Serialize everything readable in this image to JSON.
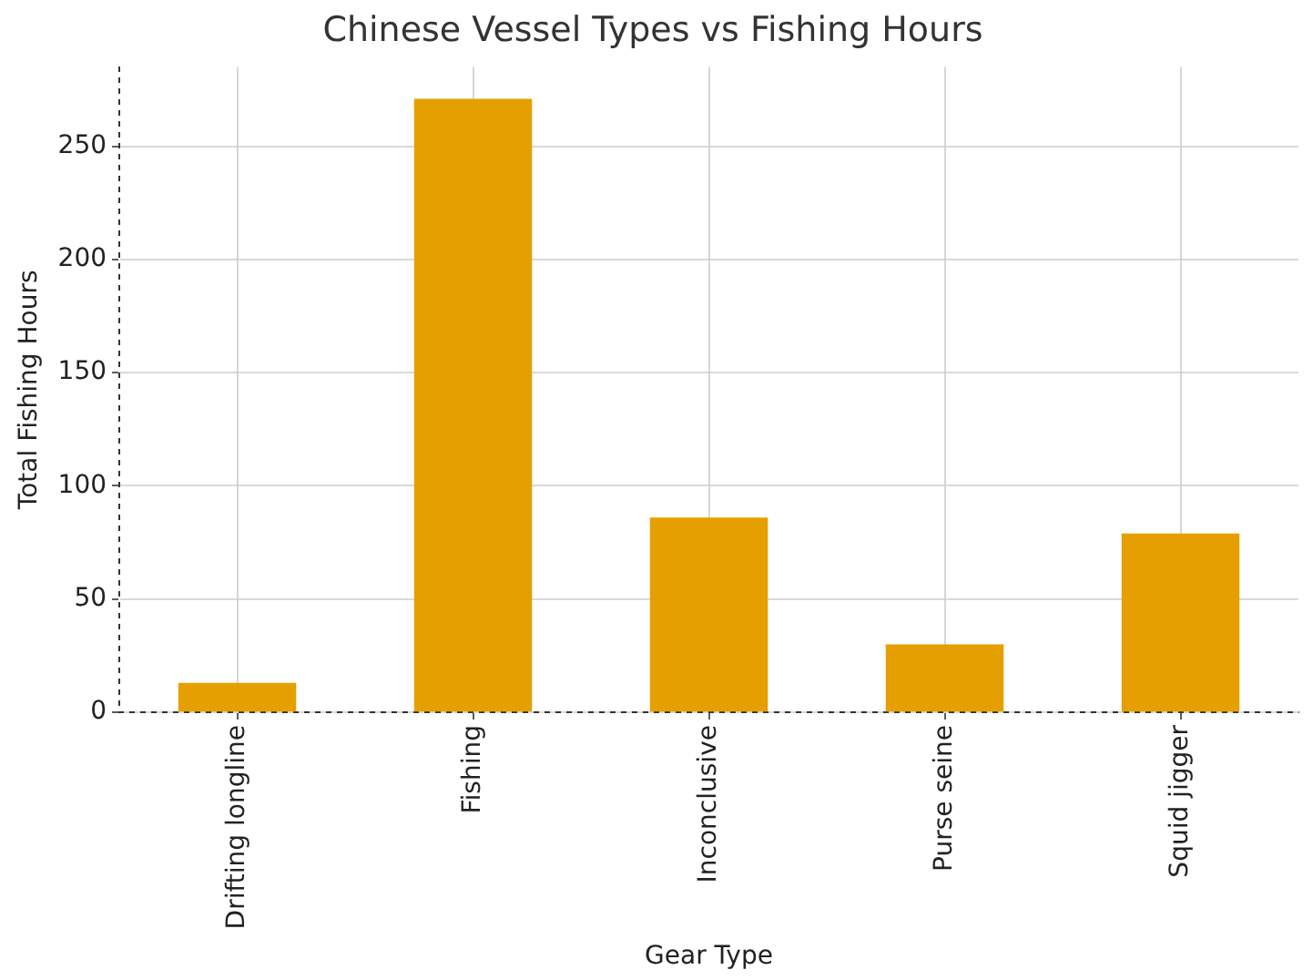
{
  "chart_data": {
    "type": "bar",
    "title": "Chinese Vessel Types vs Fishing Hours",
    "xlabel": "Gear Type",
    "ylabel": "Total Fishing Hours",
    "categories": [
      "Drifting longline",
      "Fishing",
      "Inconclusive",
      "Purse seine",
      "Squid jigger"
    ],
    "values": [
      13,
      271,
      86,
      30,
      79
    ],
    "color": "#e69f00",
    "ylim": [
      0,
      285
    ],
    "yticks": [
      0,
      50,
      100,
      150,
      200,
      250
    ],
    "grid": true,
    "legend": false
  }
}
